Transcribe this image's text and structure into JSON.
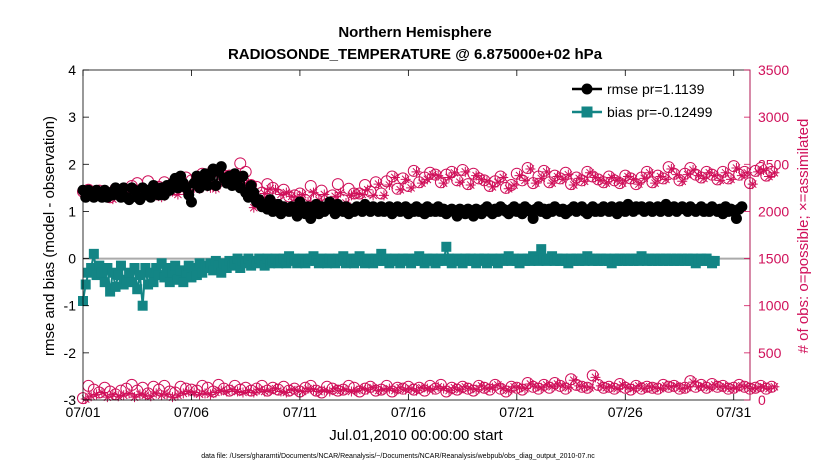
{
  "chart_data": {
    "type": "line",
    "title": "Northern Hemisphere",
    "subtitle": "RADIOSONDE_TEMPERATURE @ 6.875000e+02 hPa",
    "xlabel": "Jul.01,2010 00:00:00 start",
    "ylabel_left": "rmse and bias (model - observation)",
    "ylabel_right": "# of obs: o=possible; ×=assimilated",
    "x_ticks": [
      "07/01",
      "07/06",
      "07/11",
      "07/16",
      "07/21",
      "07/26",
      "07/31"
    ],
    "x_tick_days": [
      0,
      5,
      10,
      15,
      20,
      25,
      30
    ],
    "xlim": [
      0,
      30.75
    ],
    "ylim_left": [
      -3,
      4
    ],
    "y_ticks_left": [
      "-3",
      "-2",
      "-1",
      "0",
      "1",
      "2",
      "3",
      "4"
    ],
    "ylim_right": [
      0,
      3500
    ],
    "y_ticks_right": [
      "0",
      "500",
      "1000",
      "1500",
      "2000",
      "2500",
      "3000",
      "3500"
    ],
    "legend_position": "top-right",
    "zero_line": 0,
    "colors": {
      "rmse": "#000000",
      "bias": "#138585",
      "obs": "#d0105a",
      "zero": "#aaaaaa"
    },
    "series": [
      {
        "name": "rmse",
        "legend": "rmse pr=1.1139",
        "axis": "left",
        "step_days": 0.125,
        "values": [
          1.45,
          1.3,
          1.45,
          1.4,
          1.3,
          1.45,
          1.35,
          1.3,
          1.45,
          1.3,
          1.4,
          1.35,
          1.5,
          1.4,
          1.3,
          1.5,
          1.3,
          1.25,
          1.5,
          1.45,
          1.3,
          1.25,
          1.5,
          1.35,
          1.45,
          1.3,
          1.55,
          1.4,
          1.35,
          1.5,
          1.35,
          1.55,
          1.45,
          1.6,
          1.7,
          1.5,
          1.75,
          1.6,
          1.5,
          1.35,
          1.2,
          1.6,
          1.75,
          1.5,
          1.7,
          1.8,
          1.55,
          1.75,
          1.9,
          1.55,
          1.85,
          1.95,
          1.7,
          1.6,
          1.75,
          1.55,
          1.8,
          1.65,
          1.5,
          1.75,
          1.4,
          1.3,
          1.55,
          1.4,
          1.2,
          1.25,
          1.1,
          1.15,
          1.05,
          1.25,
          1.0,
          1.1,
          1.15,
          0.95,
          1.1,
          1.05,
          1.0,
          1.1,
          1.0,
          0.9,
          1.2,
          1.05,
          0.95,
          1.1,
          0.85,
          1.05,
          1.15,
          0.95,
          1.1,
          1.0,
          1.05,
          1.2,
          1.1,
          0.95,
          1.15,
          1.05,
          1.0,
          1.1,
          0.95,
          1.05,
          1.0,
          1.1,
          1.05,
          1.0,
          1.15,
          1.05,
          1.0,
          1.1,
          1.05,
          1.0,
          1.1,
          1.0,
          1.05,
          1.1,
          0.95,
          1.05,
          1.1,
          1.0,
          1.05,
          1.1,
          0.95,
          1.05,
          1.0,
          1.1,
          1.0,
          1.05,
          0.95,
          1.1,
          1.0,
          1.05,
          1.0,
          1.1,
          1.0,
          1.05,
          0.95,
          1.0,
          1.05,
          1.0,
          0.9,
          1.05,
          1.0,
          0.95,
          1.05,
          1.0,
          0.9,
          1.05,
          1.0,
          0.95,
          1.05,
          1.1,
          1.0,
          0.95,
          1.05,
          1.0,
          1.1,
          1.05,
          1.0,
          0.95,
          1.05,
          1.1,
          1.0,
          1.05,
          0.95,
          1.1,
          1.05,
          1.0,
          0.85,
          1.05,
          1.1,
          1.0,
          1.05,
          0.95,
          1.05,
          1.0,
          1.1,
          1.05,
          1.0,
          1.05,
          0.95,
          1.0,
          1.05,
          1.1,
          1.0,
          1.05,
          1.1,
          1.0,
          0.95,
          1.05,
          1.1,
          1.0,
          1.05,
          1.0,
          1.1,
          1.05,
          1.0,
          1.1,
          1.05,
          0.95,
          1.1,
          1.05,
          1.0,
          1.15,
          1.05,
          1.0,
          1.1,
          1.05,
          1.1,
          1.0,
          1.05,
          1.1,
          1.0,
          1.05,
          1.1,
          1.0,
          1.05,
          1.15,
          1.0,
          1.05,
          1.1,
          1.0,
          1.05,
          1.1,
          1.05,
          1.0,
          1.1,
          1.05,
          1.0,
          1.05,
          1.1,
          1.0,
          1.05,
          1.0,
          1.1,
          1.05,
          1.0,
          1.05,
          0.95,
          1.1,
          1.0,
          1.05,
          1.0,
          0.85,
          1.05,
          1.1
        ]
      },
      {
        "name": "bias",
        "legend": "bias pr=-0.12499",
        "axis": "left",
        "step_days": 0.125,
        "values": [
          -0.9,
          -0.55,
          -0.3,
          -0.2,
          0.1,
          -0.35,
          -0.15,
          -0.3,
          -0.5,
          -0.2,
          -0.7,
          -0.3,
          -0.6,
          -0.35,
          -0.15,
          -0.55,
          -0.45,
          -0.3,
          -0.5,
          -0.2,
          -0.65,
          -0.35,
          -1.0,
          -0.2,
          -0.55,
          -0.3,
          -0.5,
          -0.2,
          -0.35,
          -0.1,
          -0.4,
          -0.2,
          -0.5,
          -0.3,
          -0.15,
          -0.45,
          -0.25,
          -0.5,
          -0.3,
          -0.15,
          -0.4,
          -0.2,
          -0.35,
          -0.1,
          -0.3,
          -0.15,
          -0.2,
          -0.1,
          -0.25,
          -0.05,
          -0.15,
          -0.3,
          -0.1,
          -0.2,
          -0.05,
          -0.15,
          -0.1,
          0.0,
          -0.2,
          -0.05,
          -0.1,
          0.0,
          -0.15,
          -0.05,
          -0.1,
          0.0,
          -0.05,
          -0.15,
          0.0,
          -0.1,
          -0.05,
          0.0,
          -0.1,
          -0.05,
          0.0,
          -0.1,
          0.05,
          -0.05,
          0.0,
          -0.1,
          -0.05,
          0.0,
          -0.1,
          -0.05,
          0.0,
          0.05,
          -0.05,
          -0.1,
          0.0,
          -0.05,
          -0.1,
          0.0,
          -0.05,
          -0.1,
          0.0,
          -0.05,
          0.05,
          -0.1,
          0.0,
          -0.05,
          -0.1,
          0.0,
          0.05,
          -0.05,
          -0.1,
          0.0,
          -0.05,
          -0.1,
          0.0,
          -0.05,
          0.1,
          -0.05,
          0.0,
          -0.1,
          -0.05,
          0.0,
          -0.05,
          -0.1,
          0.0,
          -0.05,
          0.0,
          -0.1,
          -0.05,
          0.0,
          0.05,
          -0.05,
          -0.1,
          0.0,
          -0.05,
          0.0,
          -0.1,
          -0.05,
          0.0,
          -0.05,
          0.25,
          0.0,
          -0.1,
          -0.05,
          0.0,
          -0.05,
          -0.1,
          0.0,
          -0.05,
          0.0,
          -0.05,
          -0.1,
          0.0,
          -0.05,
          0.0,
          -0.1,
          -0.05,
          0.0,
          -0.05,
          -0.1,
          0.0,
          -0.05,
          0.0,
          0.05,
          -0.05,
          0.0,
          -0.05,
          -0.1,
          0.0,
          -0.05,
          0.0,
          -0.05,
          0.05,
          0.0,
          -0.05,
          0.2,
          0.0,
          -0.05,
          0.0,
          0.05,
          -0.05,
          0.0,
          -0.05,
          0.0,
          -0.05,
          -0.1,
          0.0,
          -0.05,
          0.0,
          -0.05,
          0.0,
          -0.05,
          0.05,
          0.0,
          -0.05,
          0.0,
          -0.05,
          0.0,
          -0.05,
          0.0,
          -0.05,
          -0.1,
          0.0,
          -0.05,
          0.0,
          -0.05,
          0.0,
          -0.05,
          0.0,
          -0.05,
          0.0,
          -0.05,
          0.05,
          0.0,
          -0.05,
          0.0,
          -0.05,
          0.0,
          -0.05,
          0.0,
          -0.05,
          0.0,
          -0.05,
          0.0,
          -0.05,
          0.0,
          -0.05,
          0.0,
          -0.05,
          0.0,
          -0.05,
          0.0,
          -0.1,
          -0.05,
          0.0,
          -0.05,
          0.0,
          -0.05,
          -0.1,
          -0.05
        ]
      },
      {
        "name": "obs possible (upper)",
        "marker": "circle",
        "axis": "right",
        "start_day": 0,
        "step_days": 0.25,
        "values": [
          2210,
          2230,
          2200,
          2220,
          2170,
          2150,
          2240,
          2190,
          2220,
          2270,
          2300,
          2240,
          2320,
          2210,
          2260,
          2310,
          2260,
          2230,
          2320,
          2360,
          2330,
          2330,
          2400,
          2350,
          2440,
          2420,
          2380,
          2380,
          2350,
          2510,
          2420,
          2280,
          2260,
          2200,
          2290,
          2250,
          2180,
          2230,
          2160,
          2170,
          2190,
          2120,
          2270,
          2130,
          2220,
          2080,
          2170,
          2290,
          2120,
          2240,
          2190,
          2190,
          2280,
          2210,
          2310,
          2190,
          2320,
          2370,
          2240,
          2350,
          2270,
          2430,
          2310,
          2360,
          2410,
          2390,
          2310,
          2390,
          2420,
          2330,
          2440,
          2290,
          2400,
          2350,
          2330,
          2270,
          2320,
          2370,
          2250,
          2280,
          2400,
          2330,
          2460,
          2300,
          2370,
          2430,
          2310,
          2380,
          2350,
          2410,
          2290,
          2360,
          2330,
          2420,
          2370,
          2340,
          2310,
          2370,
          2330,
          2300,
          2380,
          2350,
          2290,
          2360,
          2420,
          2310,
          2380,
          2350,
          2470,
          2400,
          2330,
          2400,
          2460,
          2390,
          2360,
          2420,
          2390,
          2340,
          2420,
          2350,
          2480,
          2390,
          2420,
          2300,
          2430,
          2460,
          2380,
          2420
        ]
      },
      {
        "name": "obs assimilated (upper)",
        "marker": "asterisk",
        "axis": "right",
        "start_day": 0.125,
        "step_days": 0.25,
        "values": [
          2200,
          2230,
          2190,
          2210,
          2150,
          2130,
          2230,
          2180,
          2200,
          2190,
          2250,
          2200,
          2210,
          2170,
          2150,
          2200,
          2210,
          2180,
          2230,
          2260,
          2250,
          2240,
          2280,
          2250,
          2240,
          2310,
          2310,
          2280,
          2300,
          2330,
          2300,
          2040,
          2070,
          2190,
          2240,
          2230,
          2180,
          2200,
          2160,
          2150,
          2180,
          2100,
          2200,
          2120,
          2180,
          2070,
          2160,
          2200,
          2090,
          2170,
          2190,
          2180,
          2230,
          2170,
          2290,
          2170,
          2280,
          2360,
          2230,
          2340,
          2250,
          2420,
          2300,
          2340,
          2390,
          2380,
          2300,
          2360,
          2410,
          2310,
          2420,
          2280,
          2380,
          2340,
          2320,
          2260,
          2310,
          2360,
          2240,
          2280,
          2380,
          2330,
          2450,
          2300,
          2350,
          2420,
          2300,
          2370,
          2340,
          2390,
          2280,
          2350,
          2320,
          2410,
          2360,
          2330,
          2300,
          2360,
          2330,
          2300,
          2370,
          2340,
          2290,
          2350,
          2410,
          2300,
          2370,
          2340,
          2450,
          2390,
          2320,
          2390,
          2440,
          2380,
          2350,
          2410,
          2380,
          2330,
          2410,
          2340,
          2460,
          2380,
          2410,
          2290,
          2420,
          2440,
          2370,
          2410
        ]
      },
      {
        "name": "obs possible (lower)",
        "marker": "circle",
        "axis": "right",
        "start_day": 0,
        "step_days": 0.25,
        "values": [
          20,
          150,
          110,
          80,
          130,
          90,
          60,
          100,
          120,
          160,
          100,
          130,
          70,
          140,
          110,
          150,
          90,
          80,
          140,
          120,
          110,
          100,
          150,
          130,
          90,
          160,
          120,
          100,
          150,
          110,
          130,
          100,
          120,
          150,
          100,
          130,
          110,
          140,
          100,
          120,
          90,
          130,
          150,
          100,
          80,
          140,
          120,
          100,
          110,
          150,
          130,
          90,
          120,
          140,
          100,
          110,
          150,
          90,
          130,
          120,
          140,
          110,
          130,
          100,
          150,
          120,
          160,
          90,
          130,
          110,
          140,
          120,
          100,
          150,
          130,
          110,
          160,
          120,
          90,
          140,
          130,
          110,
          180,
          140,
          120,
          160,
          130,
          180,
          150,
          120,
          220,
          160,
          140,
          130,
          260,
          160,
          130,
          140,
          120,
          170,
          130,
          110,
          150,
          120,
          140,
          130,
          120,
          160,
          140,
          150,
          120,
          130,
          200,
          140,
          160,
          130,
          170,
          140,
          150,
          120,
          130,
          160,
          140,
          120,
          130,
          150,
          120,
          140
        ]
      },
      {
        "name": "obs assimilated (lower)",
        "marker": "asterisk",
        "axis": "right",
        "start_day": 0.125,
        "step_days": 0.25,
        "values": [
          10,
          40,
          60,
          80,
          30,
          60,
          40,
          50,
          70,
          30,
          60,
          50,
          40,
          70,
          50,
          60,
          30,
          50,
          70,
          90,
          80,
          60,
          70,
          60,
          80,
          100,
          90,
          110,
          90,
          80,
          100,
          80,
          110,
          90,
          100,
          120,
          90,
          80,
          110,
          100,
          90,
          120,
          110,
          90,
          100,
          90,
          120,
          100,
          110,
          90,
          100,
          120,
          110,
          130,
          100,
          110,
          120,
          100,
          130,
          110,
          120,
          100,
          130,
          120,
          110,
          140,
          120,
          100,
          130,
          110,
          140,
          120,
          110,
          150,
          120,
          130,
          160,
          120,
          100,
          140,
          130,
          120,
          170,
          140,
          130,
          160,
          140,
          170,
          150,
          130,
          210,
          150,
          140,
          130,
          240,
          150,
          130,
          140,
          120,
          160,
          130,
          120,
          150,
          120,
          140,
          130,
          120,
          150,
          140,
          150,
          120,
          130,
          190,
          140,
          150,
          130,
          160,
          140,
          140,
          120,
          130,
          150,
          140,
          120,
          130,
          140,
          120,
          140
        ]
      }
    ],
    "footer": "data file: /Users/gharamti/Documents/NCAR/Reanalysis/~/Documents/NCAR/Reanalysis/webpub/obs_diag_output_2010-07.nc"
  }
}
